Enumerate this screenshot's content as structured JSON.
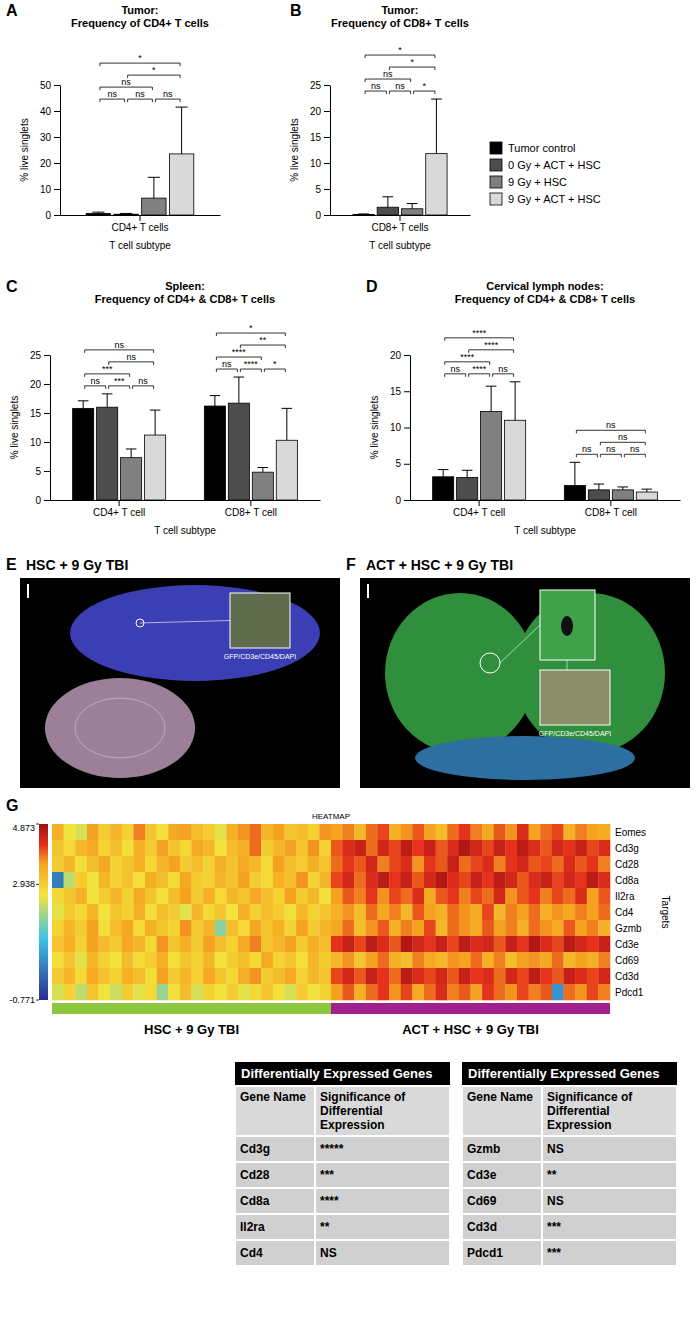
{
  "chart_data": [
    {
      "type": "bar",
      "panel": "A",
      "title": "Tumor:",
      "subtitle": "Frequency of CD4+ T cells",
      "x_label": "T cell subtype",
      "y_label": "% live singlets",
      "categories": [
        "CD4+ T cells"
      ],
      "series": [
        {
          "name": "Tumor control",
          "color": "#000000",
          "values": [
            0.6
          ],
          "errors": [
            0.5
          ]
        },
        {
          "name": "0 Gy + ACT + HSC",
          "color": "#4d4d4d",
          "values": [
            0.3
          ],
          "errors": [
            0.3
          ]
        },
        {
          "name": "9 Gy + HSC",
          "color": "#808080",
          "values": [
            6.5
          ],
          "errors": [
            8.0
          ]
        },
        {
          "name": "9 Gy + ACT + HSC",
          "color": "#d9d9d9",
          "values": [
            23.5
          ],
          "errors": [
            18.0
          ]
        }
      ],
      "ylim": [
        0,
        50
      ],
      "yticks": [
        0,
        10,
        20,
        30,
        40,
        50
      ],
      "comparisons": [
        {
          "category": 0,
          "from": 0,
          "to": 1,
          "label": "ns"
        },
        {
          "category": 0,
          "from": 1,
          "to": 2,
          "label": "ns"
        },
        {
          "category": 0,
          "from": 2,
          "to": 3,
          "label": "ns"
        },
        {
          "category": 0,
          "from": 0,
          "to": 2,
          "label": "ns"
        },
        {
          "category": 0,
          "from": 1,
          "to": 3,
          "label": "*"
        },
        {
          "category": 0,
          "from": 0,
          "to": 3,
          "label": "*"
        }
      ]
    },
    {
      "type": "bar",
      "panel": "B",
      "title": "Tumor:",
      "subtitle": "Frequency of CD8+ T cells",
      "x_label": "T cell subtype",
      "y_label": "% live singlets",
      "categories": [
        "CD8+ T cells"
      ],
      "series": [
        {
          "name": "Tumor control",
          "color": "#000000",
          "values": [
            0.1
          ],
          "errors": [
            0.1
          ]
        },
        {
          "name": "0 Gy + ACT + HSC",
          "color": "#4d4d4d",
          "values": [
            1.5
          ],
          "errors": [
            2.0
          ]
        },
        {
          "name": "9 Gy + HSC",
          "color": "#808080",
          "values": [
            1.2
          ],
          "errors": [
            1.0
          ]
        },
        {
          "name": "9 Gy + ACT + HSC",
          "color": "#d9d9d9",
          "values": [
            11.8
          ],
          "errors": [
            10.5
          ]
        }
      ],
      "ylim": [
        0,
        25
      ],
      "yticks": [
        0,
        5,
        10,
        15,
        20,
        25
      ],
      "legend": "right",
      "comparisons": [
        {
          "category": 0,
          "from": 0,
          "to": 1,
          "label": "ns"
        },
        {
          "category": 0,
          "from": 1,
          "to": 2,
          "label": "ns"
        },
        {
          "category": 0,
          "from": 2,
          "to": 3,
          "label": "*"
        },
        {
          "category": 0,
          "from": 0,
          "to": 2,
          "label": "ns"
        },
        {
          "category": 0,
          "from": 1,
          "to": 3,
          "label": "*"
        },
        {
          "category": 0,
          "from": 0,
          "to": 3,
          "label": "*"
        }
      ]
    },
    {
      "type": "bar",
      "panel": "C",
      "title": "Spleen:",
      "subtitle": "Frequency of CD4+ & CD8+ T cells",
      "x_label": "T cell subtype",
      "y_label": "% live singlets",
      "categories": [
        "CD4+ T cell",
        "CD8+ T cell"
      ],
      "series": [
        {
          "name": "Tumor control",
          "color": "#000000",
          "values": [
            15.8,
            16.2
          ],
          "errors": [
            1.3,
            1.8
          ]
        },
        {
          "name": "0 Gy + ACT + HSC",
          "color": "#4d4d4d",
          "values": [
            16.0,
            16.7
          ],
          "errors": [
            2.3,
            4.5
          ]
        },
        {
          "name": "9 Gy + HSC",
          "color": "#808080",
          "values": [
            7.3,
            4.8
          ],
          "errors": [
            1.5,
            0.8
          ]
        },
        {
          "name": "9 Gy + ACT + HSC",
          "color": "#d9d9d9",
          "values": [
            11.2,
            10.3
          ],
          "errors": [
            4.3,
            5.5
          ]
        }
      ],
      "ylim": [
        0,
        25
      ],
      "yticks": [
        0,
        5,
        10,
        15,
        20,
        25
      ],
      "comparisons": [
        {
          "category": 0,
          "from": 0,
          "to": 1,
          "label": "ns"
        },
        {
          "category": 0,
          "from": 2,
          "to": 3,
          "label": "ns"
        },
        {
          "category": 0,
          "from": 1,
          "to": 2,
          "label": "***"
        },
        {
          "category": 0,
          "from": 0,
          "to": 2,
          "label": "***"
        },
        {
          "category": 0,
          "from": 1,
          "to": 3,
          "label": "ns"
        },
        {
          "category": 0,
          "from": 0,
          "to": 3,
          "label": "ns"
        },
        {
          "category": 1,
          "from": 0,
          "to": 1,
          "label": "ns"
        },
        {
          "category": 1,
          "from": 2,
          "to": 3,
          "label": "*"
        },
        {
          "category": 1,
          "from": 1,
          "to": 2,
          "label": "****"
        },
        {
          "category": 1,
          "from": 0,
          "to": 2,
          "label": "****"
        },
        {
          "category": 1,
          "from": 1,
          "to": 3,
          "label": "**"
        },
        {
          "category": 1,
          "from": 0,
          "to": 3,
          "label": "*"
        }
      ]
    },
    {
      "type": "bar",
      "panel": "D",
      "title": "Cervical lymph nodes:",
      "subtitle": "Frequency of CD4+ & CD8+ T cells",
      "x_label": "T cell subtype",
      "y_label": "% live singlets",
      "categories": [
        "CD4+ T cell",
        "CD8+ T cell"
      ],
      "series": [
        {
          "name": "Tumor control",
          "color": "#000000",
          "values": [
            3.2,
            2.0
          ],
          "errors": [
            1.0,
            3.2
          ]
        },
        {
          "name": "0 Gy + ACT + HSC",
          "color": "#4d4d4d",
          "values": [
            3.1,
            1.4
          ],
          "errors": [
            1.0,
            0.8
          ]
        },
        {
          "name": "9 Gy + HSC",
          "color": "#808080",
          "values": [
            12.2,
            1.4
          ],
          "errors": [
            3.5,
            0.4
          ]
        },
        {
          "name": "9 Gy + ACT + HSC",
          "color": "#d9d9d9",
          "values": [
            11.0,
            1.1
          ],
          "errors": [
            5.3,
            0.4
          ]
        }
      ],
      "ylim": [
        0,
        20
      ],
      "yticks": [
        0,
        5,
        10,
        15,
        20
      ],
      "comparisons": [
        {
          "category": 0,
          "from": 0,
          "to": 1,
          "label": "ns"
        },
        {
          "category": 0,
          "from": 2,
          "to": 3,
          "label": "ns"
        },
        {
          "category": 0,
          "from": 1,
          "to": 2,
          "label": "****"
        },
        {
          "category": 0,
          "from": 0,
          "to": 2,
          "label": "****"
        },
        {
          "category": 0,
          "from": 1,
          "to": 3,
          "label": "****"
        },
        {
          "category": 0,
          "from": 0,
          "to": 3,
          "label": "****"
        },
        {
          "category": 1,
          "from": 0,
          "to": 1,
          "label": "ns"
        },
        {
          "category": 1,
          "from": 1,
          "to": 2,
          "label": "ns"
        },
        {
          "category": 1,
          "from": 2,
          "to": 3,
          "label": "ns"
        },
        {
          "category": 1,
          "from": 1,
          "to": 3,
          "label": "ns"
        },
        {
          "category": 1,
          "from": 0,
          "to": 3,
          "label": "ns"
        }
      ]
    },
    {
      "type": "heatmap",
      "panel": "G",
      "title": "HEATMAP",
      "y_label": "Targets",
      "rows": [
        "Eomes",
        "Cd3g",
        "Cd28",
        "Cd8a",
        "Il2ra",
        "Cd4",
        "Gzmb",
        "Cd3e",
        "Cd69",
        "Cd3d",
        "Pdcd1"
      ],
      "column_groups": [
        {
          "name": "HSC + 9 Gy TBI",
          "color": "#8dc63f",
          "count": 24
        },
        {
          "name": "ACT + HSC + 9 Gy TBI",
          "color": "#a0208e",
          "count": 24
        }
      ],
      "colorbar": {
        "range": [
          -0.771,
          4.873
        ],
        "ticks": [
          4.873,
          2.938,
          -0.771
        ]
      },
      "cells": [
        [
          3.4,
          2.6,
          2.4,
          3.6,
          3.0,
          3.3,
          2.9,
          3.8,
          3.1,
          2.7,
          3.5,
          3.6,
          3.2,
          3.0,
          2.5,
          3.4,
          3.7,
          3.9,
          3.3,
          3.6,
          3.1,
          3.2,
          2.9,
          3.7,
          3.6,
          3.8,
          3.3,
          3.9,
          4.1,
          3.4,
          3.7,
          4.0,
          3.6,
          3.2,
          3.9,
          4.2,
          3.8,
          3.5,
          4.0,
          3.7,
          4.3,
          3.6,
          3.9,
          4.1,
          3.4,
          3.8,
          3.6,
          3.5
        ],
        [
          3.1,
          2.8,
          3.3,
          3.5,
          2.9,
          3.2,
          2.7,
          3.4,
          3.0,
          3.6,
          3.1,
          2.8,
          3.5,
          3.3,
          2.6,
          3.2,
          3.4,
          3.9,
          3.0,
          3.3,
          3.6,
          3.1,
          3.7,
          2.9,
          4.0,
          4.3,
          4.5,
          3.9,
          4.4,
          4.1,
          4.6,
          4.2,
          4.5,
          4.0,
          4.3,
          4.7,
          4.4,
          4.1,
          4.5,
          4.2,
          4.6,
          4.3,
          4.0,
          4.4,
          4.2,
          4.5,
          4.1,
          4.3
        ],
        [
          3.0,
          3.3,
          2.7,
          3.2,
          3.5,
          2.9,
          3.1,
          3.4,
          2.8,
          3.3,
          3.6,
          3.0,
          3.2,
          2.9,
          3.4,
          3.1,
          3.5,
          3.3,
          2.8,
          3.6,
          3.2,
          3.0,
          3.4,
          3.1,
          3.9,
          4.2,
          4.0,
          4.4,
          3.8,
          4.1,
          4.3,
          3.7,
          4.2,
          4.0,
          4.5,
          3.9,
          4.1,
          4.3,
          3.8,
          4.2,
          4.4,
          4.0,
          4.1,
          3.9,
          4.3,
          4.0,
          4.2,
          3.8
        ],
        [
          0.3,
          2.2,
          3.0,
          2.6,
          3.3,
          2.9,
          3.1,
          2.7,
          3.4,
          3.2,
          2.8,
          3.5,
          3.0,
          2.9,
          3.3,
          3.1,
          3.6,
          3.0,
          2.8,
          3.4,
          3.2,
          3.7,
          2.9,
          3.3,
          4.1,
          4.4,
          3.9,
          4.3,
          4.6,
          4.2,
          4.5,
          4.0,
          4.4,
          4.7,
          4.3,
          4.1,
          4.5,
          4.2,
          4.6,
          4.4,
          4.0,
          4.3,
          4.5,
          4.1,
          4.4,
          4.2,
          4.6,
          4.3
        ],
        [
          2.8,
          3.1,
          3.4,
          2.6,
          3.0,
          3.3,
          2.9,
          3.5,
          3.1,
          2.7,
          3.2,
          3.6,
          3.0,
          3.4,
          2.8,
          3.3,
          3.1,
          3.5,
          3.2,
          2.9,
          3.6,
          3.0,
          3.3,
          2.7,
          3.6,
          4.0,
          3.8,
          4.2,
          3.7,
          4.1,
          3.9,
          4.3,
          3.5,
          4.0,
          4.2,
          3.8,
          4.1,
          3.9,
          4.4,
          3.7,
          4.0,
          4.2,
          3.8,
          4.1,
          3.9,
          4.3,
          3.6,
          4.0
        ],
        [
          2.5,
          3.0,
          2.8,
          3.3,
          2.6,
          3.1,
          2.9,
          3.4,
          2.7,
          3.2,
          3.0,
          2.5,
          3.3,
          2.8,
          3.1,
          2.6,
          3.4,
          2.9,
          3.2,
          3.0,
          2.7,
          3.3,
          2.9,
          3.1,
          3.4,
          3.7,
          3.2,
          3.9,
          3.5,
          3.8,
          3.3,
          4.0,
          3.6,
          3.4,
          3.9,
          3.7,
          3.5,
          4.1,
          3.3,
          3.8,
          3.6,
          3.9,
          3.4,
          3.7,
          3.5,
          3.8,
          3.6,
          3.9
        ],
        [
          2.9,
          3.3,
          3.0,
          3.6,
          2.7,
          3.2,
          3.5,
          2.8,
          3.4,
          3.1,
          2.9,
          3.7,
          3.0,
          3.3,
          1.8,
          3.2,
          2.8,
          3.5,
          3.1,
          3.4,
          2.9,
          3.6,
          3.0,
          3.3,
          3.5,
          3.9,
          3.2,
          3.7,
          4.0,
          3.4,
          3.8,
          3.6,
          4.1,
          3.3,
          3.9,
          3.7,
          3.5,
          4.0,
          3.6,
          3.8,
          3.4,
          3.9,
          3.7,
          3.5,
          4.0,
          3.6,
          3.8,
          3.4
        ],
        [
          3.1,
          3.4,
          2.9,
          3.6,
          3.2,
          3.0,
          3.5,
          3.3,
          2.8,
          3.7,
          3.1,
          3.4,
          3.0,
          3.6,
          3.2,
          2.9,
          3.5,
          3.8,
          3.1,
          3.3,
          3.6,
          3.0,
          3.4,
          3.2,
          4.2,
          4.5,
          4.1,
          4.6,
          4.3,
          4.0,
          4.7,
          4.4,
          4.2,
          4.5,
          4.1,
          4.6,
          4.3,
          4.4,
          4.0,
          4.5,
          4.2,
          4.7,
          4.3,
          4.1,
          4.6,
          4.4,
          4.2,
          4.5
        ],
        [
          2.7,
          3.1,
          2.5,
          3.3,
          2.9,
          2.6,
          3.2,
          2.8,
          3.0,
          3.4,
          2.7,
          3.1,
          2.9,
          3.3,
          2.6,
          3.0,
          3.2,
          2.8,
          3.5,
          2.9,
          3.1,
          2.7,
          3.3,
          3.0,
          3.3,
          3.7,
          3.1,
          3.6,
          3.9,
          3.4,
          3.2,
          3.8,
          3.5,
          3.3,
          3.7,
          3.6,
          3.9,
          3.4,
          3.8,
          3.2,
          3.6,
          3.7,
          3.5,
          3.9,
          3.3,
          3.6,
          3.4,
          3.8
        ],
        [
          3.0,
          3.3,
          2.8,
          3.5,
          3.1,
          2.9,
          3.4,
          3.2,
          2.7,
          3.6,
          3.0,
          3.3,
          2.9,
          3.5,
          3.1,
          2.8,
          3.4,
          3.7,
          3.0,
          3.2,
          3.5,
          2.9,
          3.3,
          3.1,
          4.1,
          4.4,
          4.0,
          4.5,
          4.2,
          3.9,
          4.6,
          4.3,
          4.1,
          4.4,
          4.0,
          4.5,
          4.2,
          4.3,
          3.9,
          4.4,
          4.1,
          4.6,
          4.2,
          4.0,
          4.5,
          4.3,
          4.1,
          4.4
        ],
        [
          2.4,
          2.9,
          2.2,
          3.1,
          2.6,
          2.3,
          3.0,
          2.5,
          2.8,
          1.9,
          2.7,
          3.2,
          2.4,
          2.9,
          2.6,
          3.0,
          2.5,
          2.8,
          3.1,
          2.7,
          2.4,
          3.0,
          2.6,
          2.9,
          3.6,
          4.0,
          3.4,
          3.9,
          4.2,
          3.7,
          4.1,
          3.5,
          3.9,
          4.3,
          3.8,
          4.0,
          3.6,
          4.2,
          3.9,
          3.7,
          4.1,
          3.8,
          4.0,
          0.6,
          3.9,
          3.7,
          4.1,
          3.8
        ]
      ]
    }
  ],
  "images": [
    {
      "panel": "E",
      "title": "HSC + 9 Gy TBI",
      "inset_label": "GFP/CD3e/CD45/DAPI"
    },
    {
      "panel": "F",
      "title": "ACT + HSC + 9 Gy TBI",
      "inset_label": "GFP/CD3e/CD45/DAPI"
    }
  ],
  "tables": [
    {
      "header": "Differentially Expressed Genes",
      "columns": [
        "Gene Name",
        "Significance of Differential Expression"
      ],
      "rows": [
        [
          "Cd3g",
          "*****"
        ],
        [
          "Cd28",
          "***"
        ],
        [
          "Cd8a",
          "****"
        ],
        [
          "Il2ra",
          "**"
        ],
        [
          "Cd4",
          "NS"
        ]
      ]
    },
    {
      "header": "Differentially Expressed Genes",
      "columns": [
        "Gene Name",
        "Significance of Differential Expression"
      ],
      "rows": [
        [
          "Gzmb",
          "NS"
        ],
        [
          "Cd3e",
          "**"
        ],
        [
          "Cd69",
          "NS"
        ],
        [
          "Cd3d",
          "***"
        ],
        [
          "Pdcd1",
          "***"
        ]
      ]
    }
  ]
}
